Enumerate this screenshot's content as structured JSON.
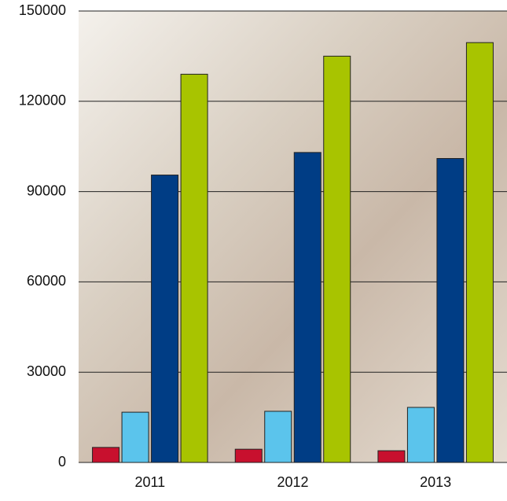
{
  "chart_data": {
    "type": "bar",
    "categories": [
      "2011",
      "2012",
      "2013"
    ],
    "series": [
      {
        "color": "#c8102e",
        "values": [
          5000,
          4400,
          3900
        ]
      },
      {
        "color": "#5bc4ec",
        "values": [
          16700,
          17000,
          18300
        ]
      },
      {
        "color": "#003d85",
        "values": [
          95500,
          103000,
          101000
        ]
      },
      {
        "color": "#a8c400",
        "values": [
          129000,
          135000,
          139500
        ]
      }
    ],
    "ylim": [
      0,
      150000
    ],
    "yticks": [
      0,
      30000,
      60000,
      90000,
      120000,
      150000
    ],
    "grid": true
  }
}
